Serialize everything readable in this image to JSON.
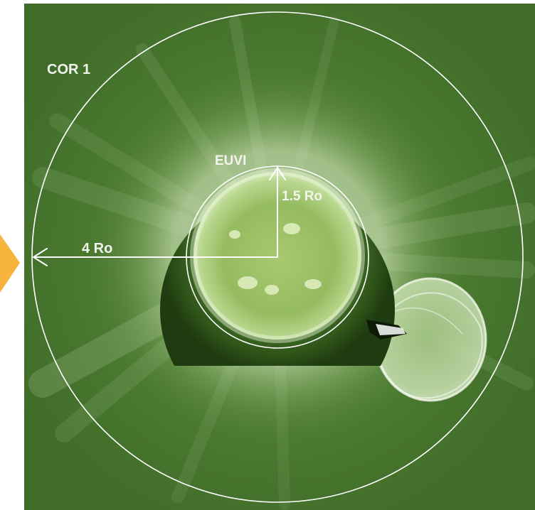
{
  "labels": {
    "cor1": "COR 1",
    "euvi": "EUVI",
    "inner_radius": "1.5 Ro",
    "outer_radius": "4 Ro"
  },
  "colors": {
    "background": "#ffffff",
    "coronagraph_field": "#4a7a2e",
    "euvi_disk": "#5f8f3a",
    "pointer": "#f7b43a",
    "annotation": "#f4f4ee"
  }
}
